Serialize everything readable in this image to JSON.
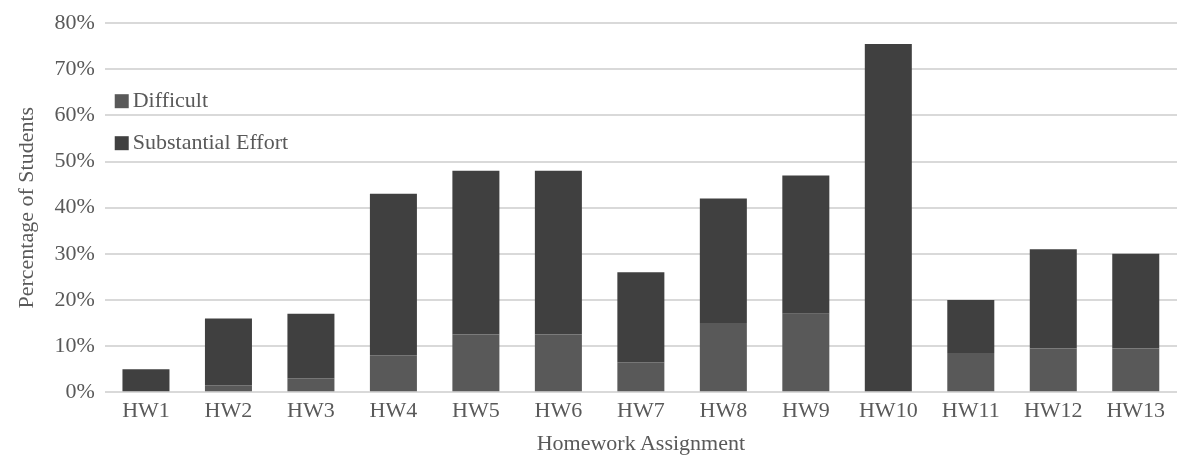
{
  "chart_data": {
    "type": "bar",
    "stacked": true,
    "xlabel": "Homework Assignment",
    "ylabel": "Percentage of Students",
    "categories": [
      "HW1",
      "HW2",
      "HW3",
      "HW4",
      "HW5",
      "HW6",
      "HW7",
      "HW8",
      "HW9",
      "HW10",
      "HW11",
      "HW12",
      "HW13"
    ],
    "series": [
      {
        "name": "Difficult",
        "color": "#595959",
        "values": [
          0,
          1.5,
          3,
          8,
          12.5,
          12.5,
          6.5,
          15,
          17,
          0,
          8.5,
          9.5,
          9.5
        ]
      },
      {
        "name": "Substantial Effort",
        "color": "#404040",
        "values": [
          5,
          14.5,
          14,
          35,
          35.5,
          35.5,
          19.5,
          27,
          30,
          75.5,
          11.5,
          21.5,
          20.5
        ]
      }
    ],
    "ylim": [
      0,
      80
    ],
    "yticks": [
      {
        "value": 0,
        "label": "0%"
      },
      {
        "value": 10,
        "label": "10%"
      },
      {
        "value": 20,
        "label": "20%"
      },
      {
        "value": 30,
        "label": "30%"
      },
      {
        "value": 40,
        "label": "40%"
      },
      {
        "value": 50,
        "label": "50%"
      },
      {
        "value": 60,
        "label": "60%"
      },
      {
        "value": 70,
        "label": "70%"
      },
      {
        "value": 80,
        "label": "80%"
      }
    ],
    "grid": "y",
    "legend": "top left"
  }
}
